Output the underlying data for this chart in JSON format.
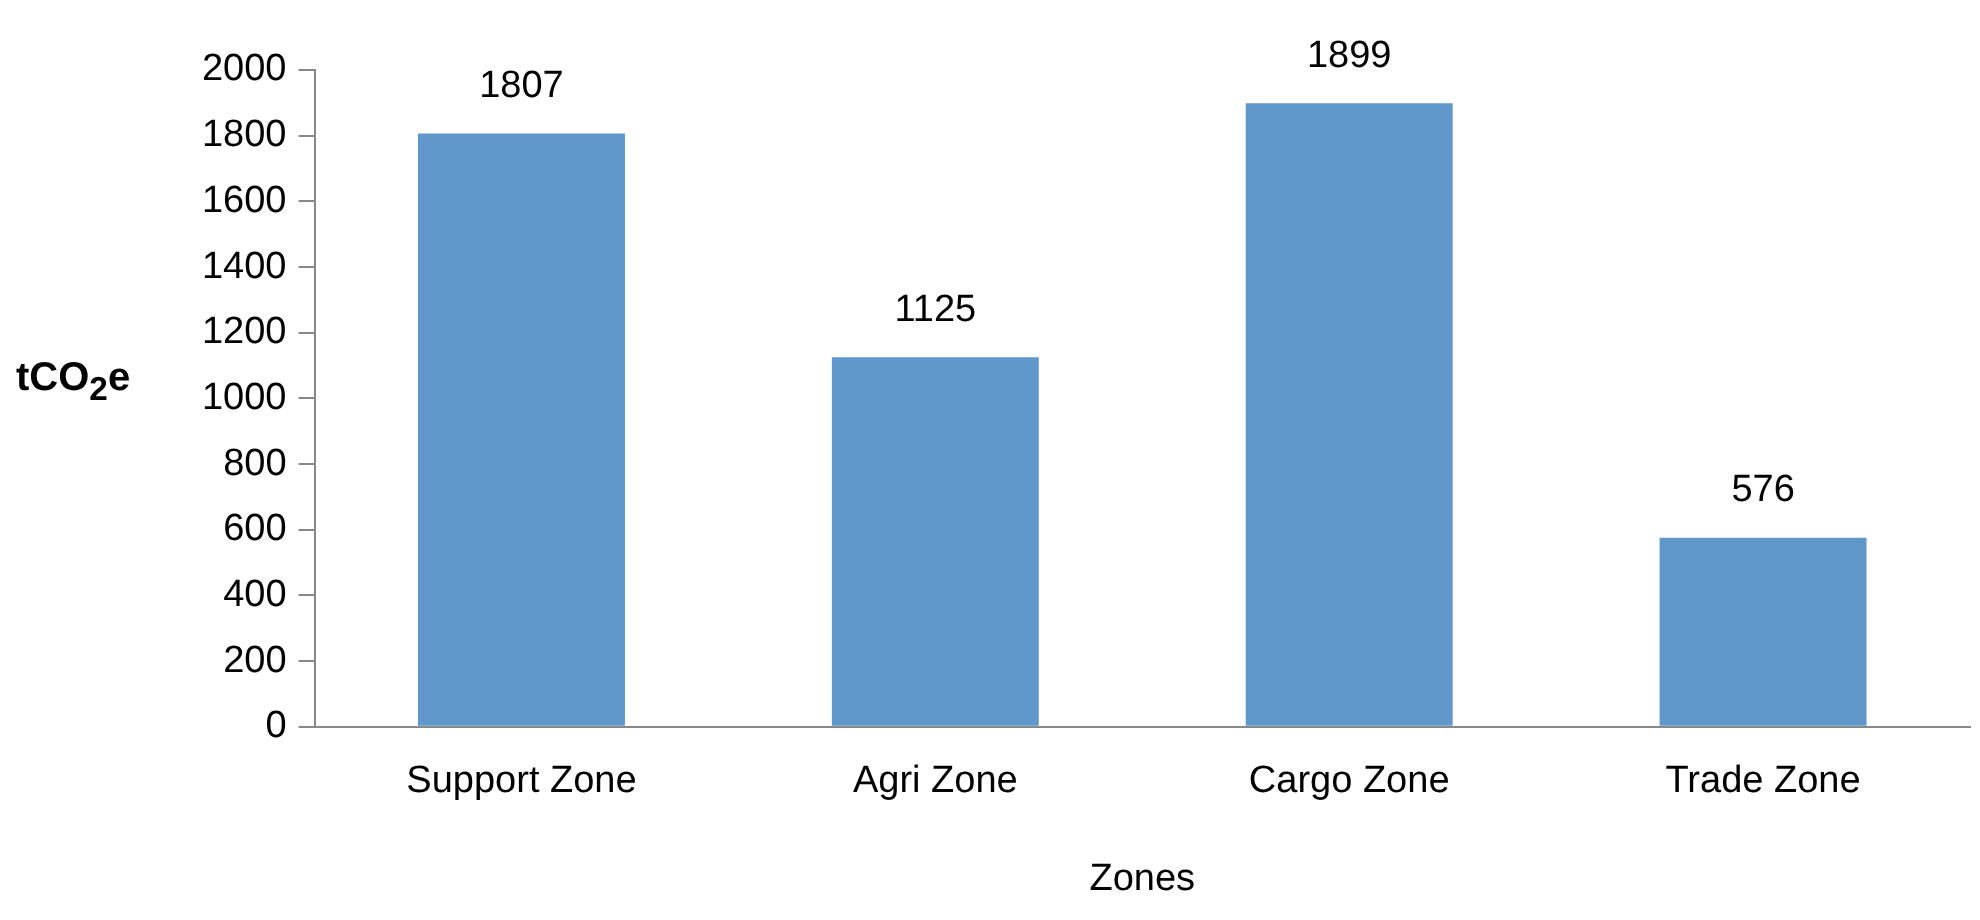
{
  "chart_data": {
    "type": "bar",
    "xlabel": "Zones",
    "ylabel": "tCO$_{2}$e",
    "categories": [
      "Support Zone",
      "Agri Zone",
      "Cargo Zone",
      "Trade Zone"
    ],
    "values": [
      1807,
      1125,
      1899,
      576
    ],
    "color": "#6198cc",
    "ylim": [
      0,
      2000
    ],
    "yticks": [
      0,
      200,
      400,
      600,
      800,
      1000,
      1200,
      1400,
      1600,
      1800,
      2000
    ],
    "grid": false,
    "legend": false,
    "data_labels": true
  }
}
